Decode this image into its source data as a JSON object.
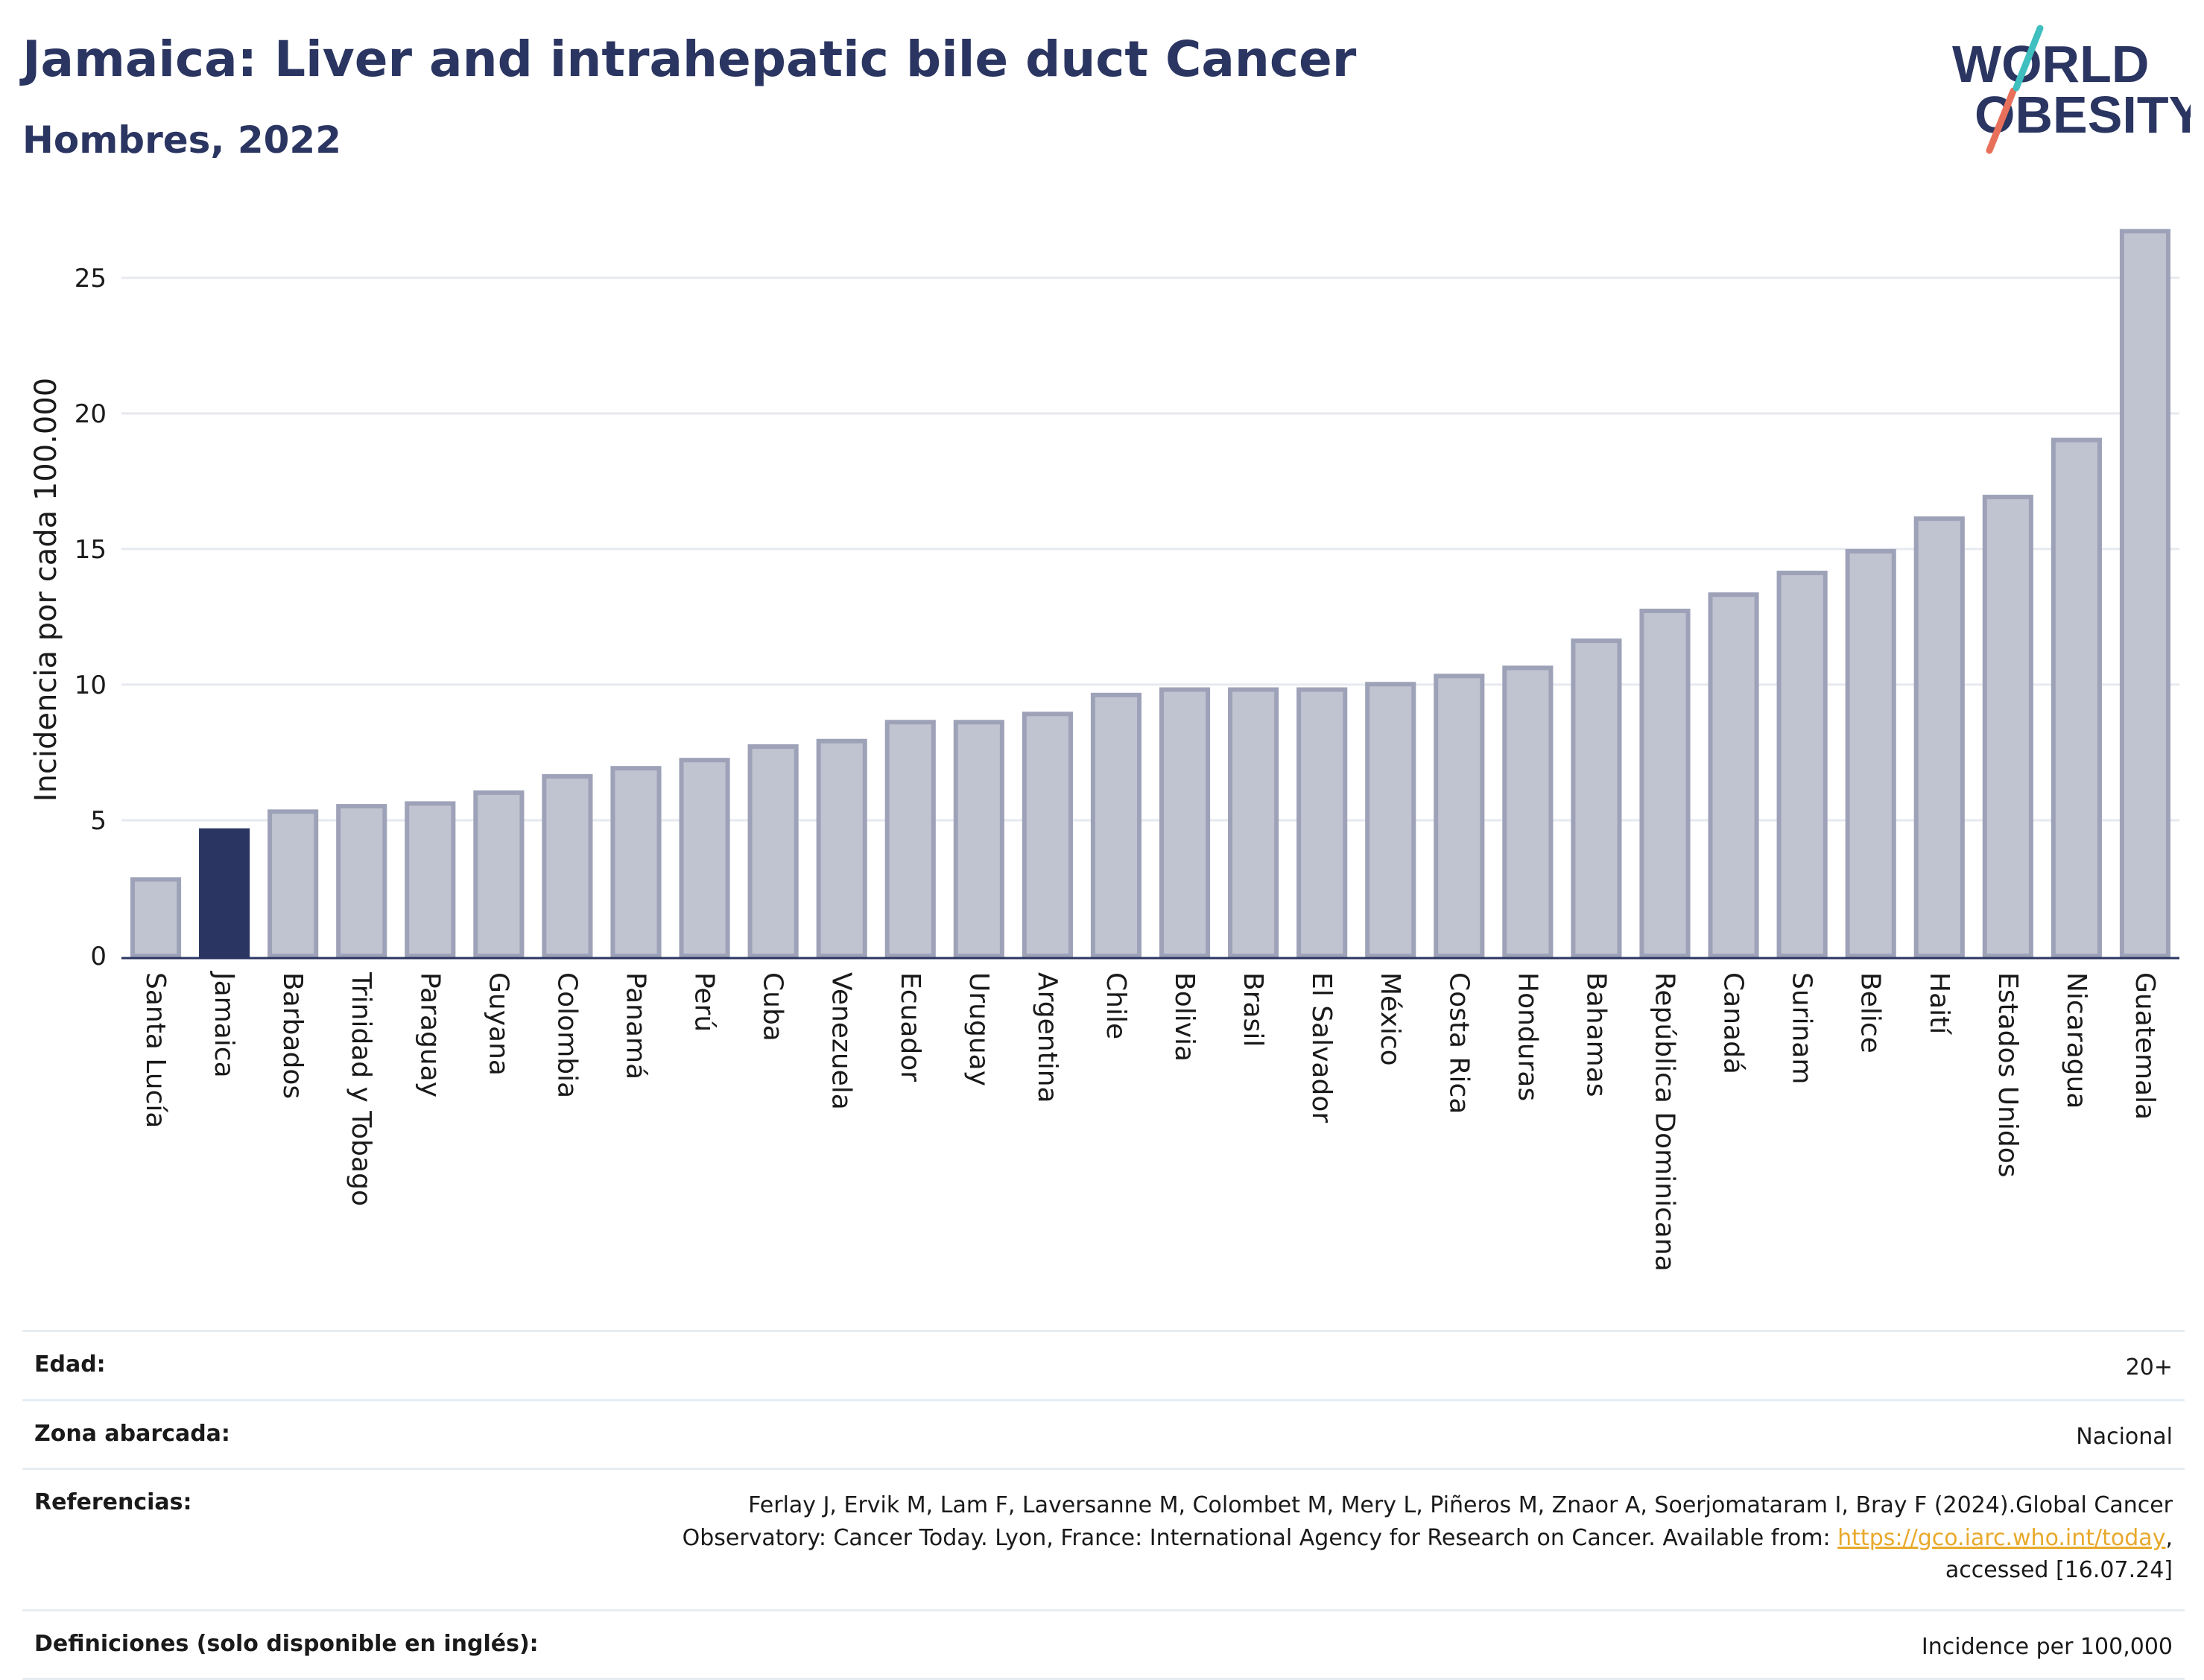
{
  "header": {
    "title": "Jamaica: Liver and intrahepatic bile duct Cancer",
    "subtitle": "Hombres, 2022"
  },
  "logo": {
    "line1": "WORLD",
    "line2": "OBESITY",
    "accent_teal": "#3fbfbf",
    "accent_coral": "#e8705a"
  },
  "colors": {
    "bar_fill": "#c0c3d0",
    "bar_stroke": "#9ea2b8",
    "highlight_fill": "#2b3561",
    "grid": "#e6e9ef",
    "text": "#2b3561"
  },
  "chart_data": {
    "type": "bar",
    "ylabel": "Incidencia por cada 100.000",
    "xlabel": "",
    "ylim": [
      0,
      27
    ],
    "yticks": [
      0,
      5,
      10,
      15,
      20,
      25
    ],
    "grid": true,
    "highlight": "Jamaica",
    "categories": [
      "Santa Lucía",
      "Jamaica",
      "Barbados",
      "Trinidad y Tobago",
      "Paraguay",
      "Guyana",
      "Colombia",
      "Panamá",
      "Perú",
      "Cuba",
      "Venezuela",
      "Ecuador",
      "Uruguay",
      "Argentina",
      "Chile",
      "Bolivia",
      "Brasil",
      "El Salvador",
      "México",
      "Costa Rica",
      "Honduras",
      "Bahamas",
      "República Dominicana",
      "Canadá",
      "Surinam",
      "Belice",
      "Haití",
      "Estados Unidos",
      "Nicaragua",
      "Guatemala"
    ],
    "values": [
      2.9,
      4.7,
      5.4,
      5.6,
      5.7,
      6.1,
      6.7,
      7.0,
      7.3,
      7.8,
      8.0,
      8.7,
      8.7,
      9.0,
      9.7,
      9.9,
      9.9,
      9.9,
      10.1,
      10.4,
      10.7,
      11.7,
      12.8,
      13.4,
      14.2,
      15.0,
      16.2,
      17.0,
      19.1,
      26.8
    ]
  },
  "meta": {
    "age_label": "Edad:",
    "age_value": "20+",
    "zone_label": "Zona abarcada:",
    "zone_value": "Nacional",
    "ref_label": "Referencias:",
    "ref_text_1": "Ferlay J, Ervik M, Lam F, Laversanne M, Colombet M, Mery L, Piñeros M, Znaor A, Soerjomataram I, Bray F (2024).Global Cancer",
    "ref_text_2": "Observatory: Cancer Today. Lyon, France: International Agency for Research on Cancer. Available from: ",
    "ref_link": "https://gco.iarc.who.int/today",
    "ref_text_3": ",",
    "ref_text_4": "accessed [16.07.24]",
    "def_label": "Definiciones (solo disponible en inglés):",
    "def_value": "Incidence per 100,000"
  }
}
